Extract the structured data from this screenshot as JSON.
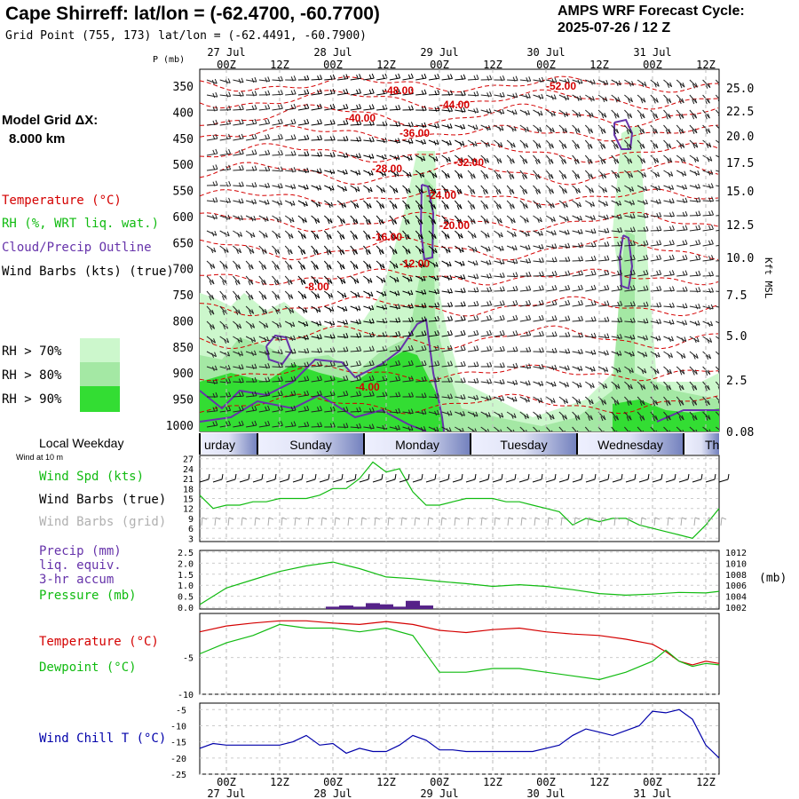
{
  "header": {
    "title": "Cape Shirreff:  lat/lon = (-62.4700, -60.7700)",
    "grid_point": "Grid Point (755, 173) lat/lon = (-62.4491, -60.7900)",
    "forecast_title": "AMPS WRF Forecast Cycle:",
    "forecast_cycle": "2025-07-26 / 12  Z"
  },
  "sidebar": {
    "model_grid_label": "Model Grid ΔX:",
    "model_grid_value": "8.000 km",
    "temperature": "Temperature (°C)",
    "rh": "RH (%, WRT liq. wat.)",
    "cloud": "Cloud/Precip Outline",
    "wind_barbs": "Wind Barbs (kts) (true)",
    "rh70": "RH > 70%",
    "rh80": "RH > 80%",
    "rh90": "RH > 90%",
    "local_weekday": "Local Weekday",
    "wind_at_10m": "Wind at 10 m",
    "wind_spd": "Wind Spd (kts)",
    "wind_barbs_true": "Wind Barbs (true)",
    "wind_barbs_grid": "Wind Barbs (grid)",
    "precip": "Precip (mm)",
    "liq_equiv": "liq. equiv.",
    "accum": "3-hr accum",
    "pressure": "Pressure (mb)",
    "temperature2": "Temperature (°C)",
    "dewpoint": "Dewpoint (°C)",
    "wind_chill": "Wind Chill T (°C)"
  },
  "colors": {
    "temperature": "#d40000",
    "rh70": "#ccf7cc",
    "rh80": "#a4e8a4",
    "rh90": "#33dd33",
    "cloud_outline": "#6633aa",
    "pressure": "#11bb11",
    "wind_chill": "#0000aa",
    "precip_bar": "#552288"
  },
  "axes": {
    "p_label": "P (mb)",
    "kft_label": "Kft MSL",
    "mb_unit": "(mb)",
    "time_labels": [
      "00Z",
      "12Z",
      "00Z",
      "12Z",
      "00Z",
      "12Z",
      "00Z",
      "12Z",
      "00Z",
      "12Z"
    ],
    "date_labels": [
      "27 Jul",
      "28 Jul",
      "29 Jul",
      "30 Jul",
      "31 Jul"
    ],
    "weekdays": [
      "urday",
      "Sunday",
      "Monday",
      "Tuesday",
      "Wednesday",
      "Th"
    ],
    "pressure_levels": [
      "350",
      "400",
      "450",
      "500",
      "550",
      "600",
      "650",
      "700",
      "750",
      "800",
      "850",
      "900",
      "950",
      "1000"
    ],
    "kft_levels": [
      "25.0",
      "22.5",
      "20.0",
      "17.5",
      "15.0",
      "12.5",
      "10.0",
      "7.5",
      "5.0",
      "2.5",
      "0.08"
    ]
  },
  "chart_data": [
    {
      "type": "heatmap",
      "title": "",
      "ylabel": "P (mb)",
      "ylim": [
        1000,
        340
      ],
      "x": [
        "2025-07-26 18Z",
        "2025-07-31 12Z"
      ],
      "temperature_contour_labels": [
        "-52.00",
        "-48.00",
        "-44.00",
        "-40.00",
        "-36.00",
        "-32.00",
        "-28.00",
        "-24.00",
        "-20.00",
        "-16.00",
        "-12.00",
        "-8.00",
        "-4.00"
      ]
    },
    {
      "type": "line",
      "name": "Wind Spd (kts)",
      "yticks": [
        "27",
        "24",
        "21",
        "18",
        "15",
        "12",
        "9",
        "6",
        "3"
      ],
      "x_hours": [
        0,
        3,
        6,
        9,
        12,
        15,
        18,
        21,
        24,
        27,
        30,
        33,
        36,
        39,
        42,
        45,
        48,
        51,
        54,
        57,
        60,
        63,
        66,
        69,
        72,
        75,
        78,
        81,
        84,
        87,
        90,
        93,
        96,
        99,
        102,
        105,
        108,
        111,
        114,
        117
      ],
      "values": [
        16,
        12,
        13,
        13,
        14,
        14,
        15,
        15,
        15,
        16,
        18,
        18,
        21,
        26,
        23,
        24,
        17,
        13,
        13,
        14,
        15,
        15,
        15,
        14,
        14,
        13,
        12,
        11,
        7,
        9,
        8,
        9,
        9,
        7,
        6,
        5,
        4,
        3,
        7,
        12
      ]
    },
    {
      "type": "line",
      "name": "Pressure (mb)",
      "yticks_left": [
        "2.5",
        "2.0",
        "1.5",
        "1.0",
        "0.5",
        "0.0"
      ],
      "yticks_right": [
        "1012",
        "1010",
        "1008",
        "1006",
        "1004",
        "1002"
      ],
      "x_hours": [
        0,
        6,
        12,
        18,
        24,
        30,
        36,
        42,
        48,
        54,
        60,
        66,
        72,
        78,
        84,
        90,
        96,
        102,
        108,
        114,
        117
      ],
      "values": [
        1002.5,
        1005.5,
        1007,
        1008.5,
        1009.5,
        1010.2,
        1009,
        1007.5,
        1007.2,
        1006.7,
        1006.3,
        1005.8,
        1006.1,
        1005.8,
        1005.2,
        1004.5,
        1004.2,
        1004.4,
        1004.7,
        1004.6,
        1004.9
      ]
    },
    {
      "type": "bar",
      "name": "Precip (mm)",
      "x_hours": [
        30,
        33,
        36,
        39,
        42,
        45,
        48,
        51
      ],
      "values": [
        0.1,
        0.15,
        0.1,
        0.25,
        0.2,
        0.1,
        0.35,
        0.15
      ]
    },
    {
      "type": "line",
      "series": [
        {
          "name": "Temperature (°C)",
          "x_hours": [
            0,
            6,
            12,
            18,
            24,
            30,
            36,
            42,
            48,
            54,
            60,
            66,
            72,
            78,
            84,
            90,
            96,
            102,
            105,
            108,
            111,
            114,
            117
          ],
          "values": [
            -1.5,
            -0.7,
            -0.3,
            0,
            0,
            -0.3,
            -0.5,
            -0.1,
            -0.5,
            -1.3,
            -1.6,
            -1.2,
            -1,
            -1.5,
            -1.8,
            -2,
            -2.5,
            -3.2,
            -4.2,
            -5.5,
            -6,
            -5.5,
            -5.8
          ]
        },
        {
          "name": "Dewpoint (°C)",
          "x_hours": [
            0,
            6,
            12,
            18,
            24,
            30,
            36,
            42,
            48,
            54,
            60,
            66,
            72,
            78,
            84,
            90,
            96,
            102,
            105,
            108,
            111,
            114,
            117
          ],
          "values": [
            -4.5,
            -3,
            -2,
            -0.5,
            -1,
            -1,
            -1.5,
            -1,
            -2,
            -7,
            -7,
            -6.5,
            -6.5,
            -7,
            -7.5,
            -8,
            -7,
            -5.5,
            -4,
            -5.5,
            -6.2,
            -5.8,
            -6
          ]
        }
      ],
      "yticks": [
        "-5",
        "-10"
      ]
    },
    {
      "type": "line",
      "name": "Wind Chill T (°C)",
      "yticks": [
        "-5",
        "-10",
        "-15",
        "-20",
        "-25"
      ],
      "x_hours": [
        0,
        3,
        6,
        9,
        12,
        15,
        18,
        21,
        24,
        27,
        30,
        33,
        36,
        39,
        42,
        45,
        48,
        51,
        54,
        57,
        60,
        63,
        66,
        69,
        72,
        75,
        78,
        81,
        84,
        87,
        90,
        93,
        96,
        99,
        102,
        105,
        108,
        111,
        114,
        117
      ],
      "values": [
        -17,
        -15.5,
        -16,
        -16,
        -16,
        -16,
        -16,
        -15,
        -13,
        -16,
        -15.5,
        -18.5,
        -17,
        -18,
        -18,
        -16,
        -13,
        -14.5,
        -17.5,
        -17.5,
        -18,
        -18,
        -18,
        -18,
        -18,
        -18,
        -17,
        -16,
        -13,
        -11,
        -12,
        -13,
        -11.5,
        -10,
        -5.5,
        -6,
        -5,
        -8,
        -16,
        -20
      ]
    }
  ]
}
